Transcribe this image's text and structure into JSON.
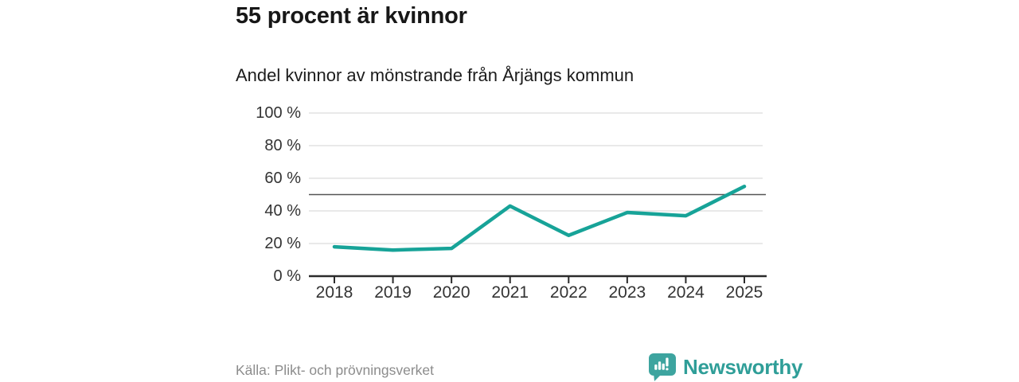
{
  "chart_data": {
    "type": "line",
    "title": "55 procent är kvinnor",
    "subtitle": "Andel kvinnor av mönstrande från Årjängs kommun",
    "source": "Källa: Plikt- och prövningsverket",
    "x": [
      2018,
      2019,
      2020,
      2021,
      2022,
      2023,
      2024,
      2025
    ],
    "series": [
      {
        "name": "Andel kvinnor av mönstrande",
        "values": [
          18,
          16,
          17,
          43,
          25,
          39,
          37,
          55
        ],
        "color": "#17a398"
      }
    ],
    "ylim": [
      0,
      100
    ],
    "yticks": [
      {
        "value": 0,
        "label": "0 %"
      },
      {
        "value": 20,
        "label": "20 %"
      },
      {
        "value": 40,
        "label": "40 %"
      },
      {
        "value": 60,
        "label": "60 %"
      },
      {
        "value": 80,
        "label": "80 %"
      },
      {
        "value": 100,
        "label": "100 %"
      }
    ],
    "reference_line": {
      "value": 50
    },
    "grid": true,
    "legend": false,
    "unit": "%"
  },
  "colors": {
    "line": "#17a398",
    "grid": "#dcdcdc",
    "reference_line": "#555555",
    "axis": "#2b2b2b",
    "tick_label": "#333333",
    "source_text": "#8c8c8c",
    "brand_text": "#2f9e98",
    "logo": "#3da49f"
  },
  "footer": {
    "brand": "Newsworthy",
    "logo_icon": "bar-chart-speech-bubble"
  }
}
